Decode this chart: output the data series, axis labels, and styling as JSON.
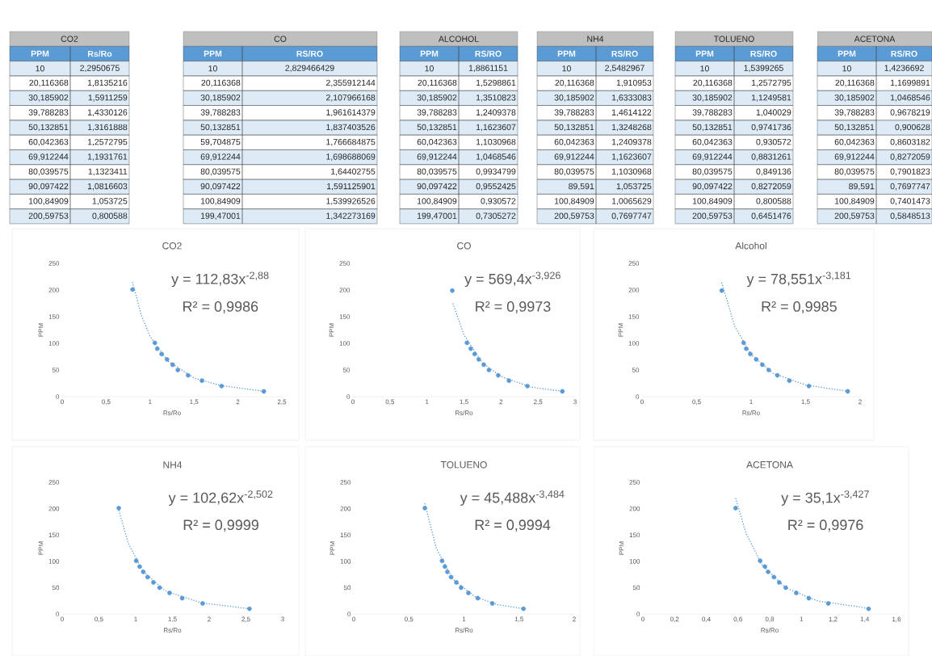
{
  "chart_data": [
    {
      "type": "other",
      "title": "CO2",
      "categories": [
        "PPM",
        "Rs/Ro"
      ],
      "annotations": [
        "10",
        "2,2950675",
        "20,116368",
        "1,8135216",
        "30,185902",
        "1,5911259",
        "39,788283",
        "1,4330126",
        "50,132851",
        "1,3161888",
        "60,042363",
        "1,2572795",
        "69,912244",
        "1,1931761",
        "80,039575",
        "1,1323411",
        "90,097422",
        "1,0816603",
        "100,84909",
        "1,053725",
        "200,59753",
        "0,800588"
      ]
    },
    {
      "type": "other",
      "title": "CO",
      "categories": [
        "PPM",
        "RS/RO"
      ],
      "annotations": [
        "10",
        "2,829466429",
        "20,116368",
        "2,355912144",
        "30,185902",
        "2,107966168",
        "39,788283",
        "1,961614379",
        "50,132851",
        "1,837403526",
        "59,704875",
        "1,766684875",
        "69,912244",
        "1,698688069",
        "80,039575",
        "1,64402755",
        "90,097422",
        "1,591125901",
        "100,84909",
        "1,539926526",
        "199,47001",
        "1,342273169"
      ]
    },
    {
      "type": "other",
      "title": "ALCOHOL",
      "categories": [
        "PPM",
        "RS/RO"
      ],
      "annotations": [
        "10",
        "1,8861151",
        "20,116368",
        "1,5298861",
        "30,185902",
        "1,3510823",
        "39,788283",
        "1,2409378",
        "50,132851",
        "1,1623607",
        "60,042363",
        "1,1030968",
        "69,912244",
        "1,0468546",
        "80,039575",
        "0,9934799",
        "90,097422",
        "0,9552425",
        "100,84909",
        "0,930572",
        "199,47001",
        "0,7305272"
      ]
    },
    {
      "type": "other",
      "title": "NH4",
      "categories": [
        "PPM",
        "RS/RO"
      ],
      "annotations": [
        "10",
        "2,5482967",
        "20,116368",
        "1,910953",
        "30,185902",
        "1,6333083",
        "39,788283",
        "1,4614122",
        "50,132851",
        "1,3248268",
        "60,042363",
        "1,2409378",
        "69,912244",
        "1,1623607",
        "80,039575",
        "1,1030968",
        "89,591",
        "1,053725",
        "100,84909",
        "1,0065629",
        "200,59753",
        "0,7697747"
      ]
    },
    {
      "type": "other",
      "title": "TOLUENO",
      "categories": [
        "PPM",
        "RS/RO"
      ],
      "annotations": [
        "10",
        "1,5399265",
        "20,116368",
        "1,2572795",
        "30,185902",
        "1,1249581",
        "39,788283",
        "1,040029",
        "50,132851",
        "0,9741736",
        "60,042363",
        "0,930572",
        "69,912244",
        "0,8831261",
        "80,039575",
        "0,849136",
        "90,097422",
        "0,8272059",
        "100,84909",
        "0,800588",
        "200,59753",
        "0,6451476"
      ]
    },
    {
      "type": "other",
      "title": "ACETONA",
      "categories": [
        "PPM",
        "RS/RO"
      ],
      "annotations": [
        "10",
        "1,4236692",
        "20,116368",
        "1,1699891",
        "30,185902",
        "1,0468546",
        "39,788283",
        "0,9678219",
        "50,132851",
        "0,900628",
        "60,042363",
        "0,8603182",
        "69,912244",
        "0,8272059",
        "80,039575",
        "0,7901823",
        "89,591",
        "0,7697747",
        "100,84909",
        "0,7401473",
        "200,59753",
        "0,5848513"
      ]
    },
    {
      "type": "scatter",
      "title": "CO2",
      "xlabel": "Rs/Ro",
      "ylabel": "PPM",
      "xlim": [
        0,
        2.5
      ],
      "ylim": [
        0,
        250
      ],
      "xticks": [
        0,
        {
          "value": 0.5,
          "label": "0,5"
        },
        1,
        {
          "value": 1.5,
          "label": "1,5"
        },
        2,
        {
          "value": 2.5,
          "label": "2,5"
        }
      ],
      "yticks": [
        0,
        50,
        100,
        150,
        200,
        250
      ],
      "line_style": "dotted",
      "annotations": [
        "y = 112,83x$^{-2,88}$",
        "R² = 0,9986"
      ],
      "series": [
        {
          "type": "scatter",
          "marker": "circle",
          "color": "#5b9bd5",
          "x": [
            2.295,
            1.814,
            1.591,
            1.433,
            1.316,
            1.257,
            1.193,
            1.132,
            1.082,
            1.054,
            0.801
          ],
          "values": [
            10,
            20,
            30,
            40,
            50,
            60,
            70,
            80,
            90,
            101,
            201
          ]
        },
        {
          "type": "line",
          "marker": "none",
          "color": "#5b9bd5",
          "x": [
            0.8,
            0.9,
            1.0,
            1.2,
            1.5,
            1.8,
            2.3
          ],
          "values": [
            215,
            153,
            113,
            67,
            35,
            21,
            10
          ]
        }
      ]
    },
    {
      "type": "scatter",
      "title": "CO",
      "xlabel": "Rs/Ro",
      "ylabel": "PPM",
      "xlim": [
        0,
        3
      ],
      "ylim": [
        0,
        250
      ],
      "xticks": [
        0,
        {
          "value": 0.5,
          "label": "0,5"
        },
        1,
        {
          "value": 1.5,
          "label": "1,5"
        },
        2,
        {
          "value": 2.5,
          "label": "2,5"
        },
        3
      ],
      "yticks": [
        0,
        50,
        100,
        150,
        200,
        250
      ],
      "line_style": "dotted",
      "annotations": [
        "y = 569,4x$^{-3,926}$",
        "R² = 0,9973"
      ],
      "series": [
        {
          "type": "scatter",
          "marker": "circle",
          "color": "#5b9bd5",
          "x": [
            2.829,
            2.356,
            2.108,
            1.962,
            1.837,
            1.767,
            1.699,
            1.644,
            1.591,
            1.54,
            1.342
          ],
          "values": [
            10,
            20,
            30,
            40,
            50,
            60,
            70,
            80,
            90,
            101,
            199
          ]
        },
        {
          "type": "line",
          "marker": "none",
          "color": "#5b9bd5",
          "x": [
            1.35,
            1.5,
            1.75,
            2.0,
            2.4,
            2.83
          ],
          "values": [
            175,
            116,
            63,
            38,
            18,
            10
          ]
        }
      ]
    },
    {
      "type": "scatter",
      "title": "Alcohol",
      "xlabel": "Rs/Ro",
      "ylabel": "PPM",
      "xlim": [
        0,
        2
      ],
      "ylim": [
        0,
        250
      ],
      "xticks": [
        0,
        {
          "value": 0.5,
          "label": "0,5"
        },
        1,
        {
          "value": 1.5,
          "label": "1,5"
        },
        2
      ],
      "yticks": [
        0,
        50,
        100,
        150,
        200,
        250
      ],
      "line_style": "dotted",
      "annotations": [
        "y = 78,551x$^{-3,181}$",
        "R² = 0,9985"
      ],
      "series": [
        {
          "type": "scatter",
          "marker": "circle",
          "color": "#5b9bd5",
          "x": [
            1.886,
            1.53,
            1.351,
            1.241,
            1.162,
            1.103,
            1.047,
            0.993,
            0.955,
            0.931,
            0.731
          ],
          "values": [
            10,
            20,
            30,
            40,
            50,
            60,
            70,
            80,
            90,
            101,
            199
          ]
        },
        {
          "type": "line",
          "marker": "none",
          "color": "#5b9bd5",
          "x": [
            0.73,
            0.85,
            1.0,
            1.2,
            1.5,
            1.89
          ],
          "values": [
            214,
            132,
            79,
            44,
            22,
            10
          ]
        }
      ]
    },
    {
      "type": "scatter",
      "title": "NH4",
      "xlabel": "Rs/Ro",
      "ylabel": "PPM",
      "xlim": [
        0,
        3
      ],
      "ylim": [
        0,
        250
      ],
      "xticks": [
        0,
        {
          "value": 0.5,
          "label": "0,5"
        },
        1,
        {
          "value": 1.5,
          "label": "1,5"
        },
        2,
        {
          "value": 2.5,
          "label": "2,5"
        },
        3
      ],
      "yticks": [
        0,
        50,
        100,
        150,
        200,
        250
      ],
      "line_style": "dotted",
      "annotations": [
        "y = 102,62x$^{-2,502}$",
        "R² = 0,9999"
      ],
      "series": [
        {
          "type": "scatter",
          "marker": "circle",
          "color": "#5b9bd5",
          "x": [
            2.548,
            1.911,
            1.633,
            1.461,
            1.325,
            1.241,
            1.162,
            1.103,
            1.054,
            1.007,
            0.77
          ],
          "values": [
            10,
            20,
            30,
            40,
            50,
            60,
            70,
            80,
            90,
            101,
            201
          ]
        },
        {
          "type": "line",
          "marker": "none",
          "color": "#5b9bd5",
          "x": [
            0.77,
            0.9,
            1.1,
            1.4,
            1.9,
            2.55
          ],
          "values": [
            197,
            134,
            81,
            44,
            21,
            10
          ]
        }
      ]
    },
    {
      "type": "scatter",
      "title": "TOLUENO",
      "xlabel": "Rs/Ro",
      "ylabel": "PPM",
      "xlim": [
        0,
        2
      ],
      "ylim": [
        0,
        250
      ],
      "xticks": [
        0,
        {
          "value": 0.5,
          "label": "0,5"
        },
        1,
        {
          "value": 1.5,
          "label": "1,5"
        },
        2
      ],
      "yticks": [
        0,
        50,
        100,
        150,
        200,
        250
      ],
      "line_style": "dotted",
      "annotations": [
        "y = 45,488x$^{-3,484}$",
        "R² = 0,9994"
      ],
      "series": [
        {
          "type": "scatter",
          "marker": "circle",
          "color": "#5b9bd5",
          "x": [
            1.54,
            1.257,
            1.125,
            1.04,
            0.974,
            0.931,
            0.883,
            0.849,
            0.827,
            0.801,
            0.645
          ],
          "values": [
            10,
            20,
            30,
            40,
            50,
            60,
            70,
            80,
            90,
            101,
            201
          ]
        },
        {
          "type": "line",
          "marker": "none",
          "color": "#5b9bd5",
          "x": [
            0.645,
            0.75,
            0.9,
            1.1,
            1.3,
            1.54
          ],
          "values": [
            210,
            124,
            66,
            33,
            18,
            10
          ]
        }
      ]
    },
    {
      "type": "scatter",
      "title": "ACETONA",
      "xlabel": "Rs/Ro",
      "ylabel": "PPM",
      "xlim": [
        0,
        1.6
      ],
      "ylim": [
        0,
        250
      ],
      "xticks": [
        0,
        {
          "value": 0.2,
          "label": "0,2"
        },
        {
          "value": 0.4,
          "label": "0,4"
        },
        {
          "value": 0.6,
          "label": "0,6"
        },
        {
          "value": 0.8,
          "label": "0,8"
        },
        1,
        {
          "value": 1.2,
          "label": "1,2"
        },
        {
          "value": 1.4,
          "label": "1,4"
        },
        {
          "value": 1.6,
          "label": "1,6"
        }
      ],
      "yticks": [
        0,
        50,
        100,
        150,
        200,
        250
      ],
      "line_style": "dotted",
      "annotations": [
        "y = 35,1x$^{-3,427}$",
        "R² = 0,9976"
      ],
      "series": [
        {
          "type": "scatter",
          "marker": "circle",
          "color": "#5b9bd5",
          "x": [
            1.424,
            1.17,
            1.047,
            0.968,
            0.901,
            0.86,
            0.827,
            0.79,
            0.77,
            0.74,
            0.585
          ],
          "values": [
            10,
            20,
            30,
            40,
            50,
            60,
            70,
            80,
            90,
            101,
            201
          ]
        },
        {
          "type": "line",
          "marker": "none",
          "color": "#5b9bd5",
          "x": [
            0.585,
            0.65,
            0.75,
            0.9,
            1.1,
            1.42
          ],
          "values": [
            220,
            154,
            94,
            50,
            25,
            11
          ]
        }
      ]
    }
  ]
}
